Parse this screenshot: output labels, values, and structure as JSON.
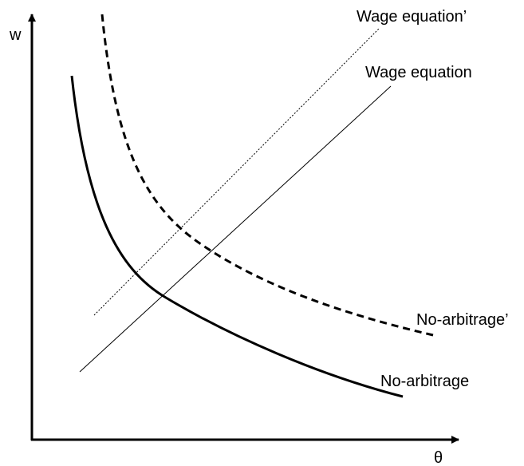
{
  "axes": {
    "y_label": "w",
    "x_label": "θ"
  },
  "curves": [
    {
      "label": "Wage equation’"
    },
    {
      "label": "Wage equation"
    },
    {
      "label": "No-arbitrage’"
    },
    {
      "label": "No-arbitrage"
    }
  ]
}
